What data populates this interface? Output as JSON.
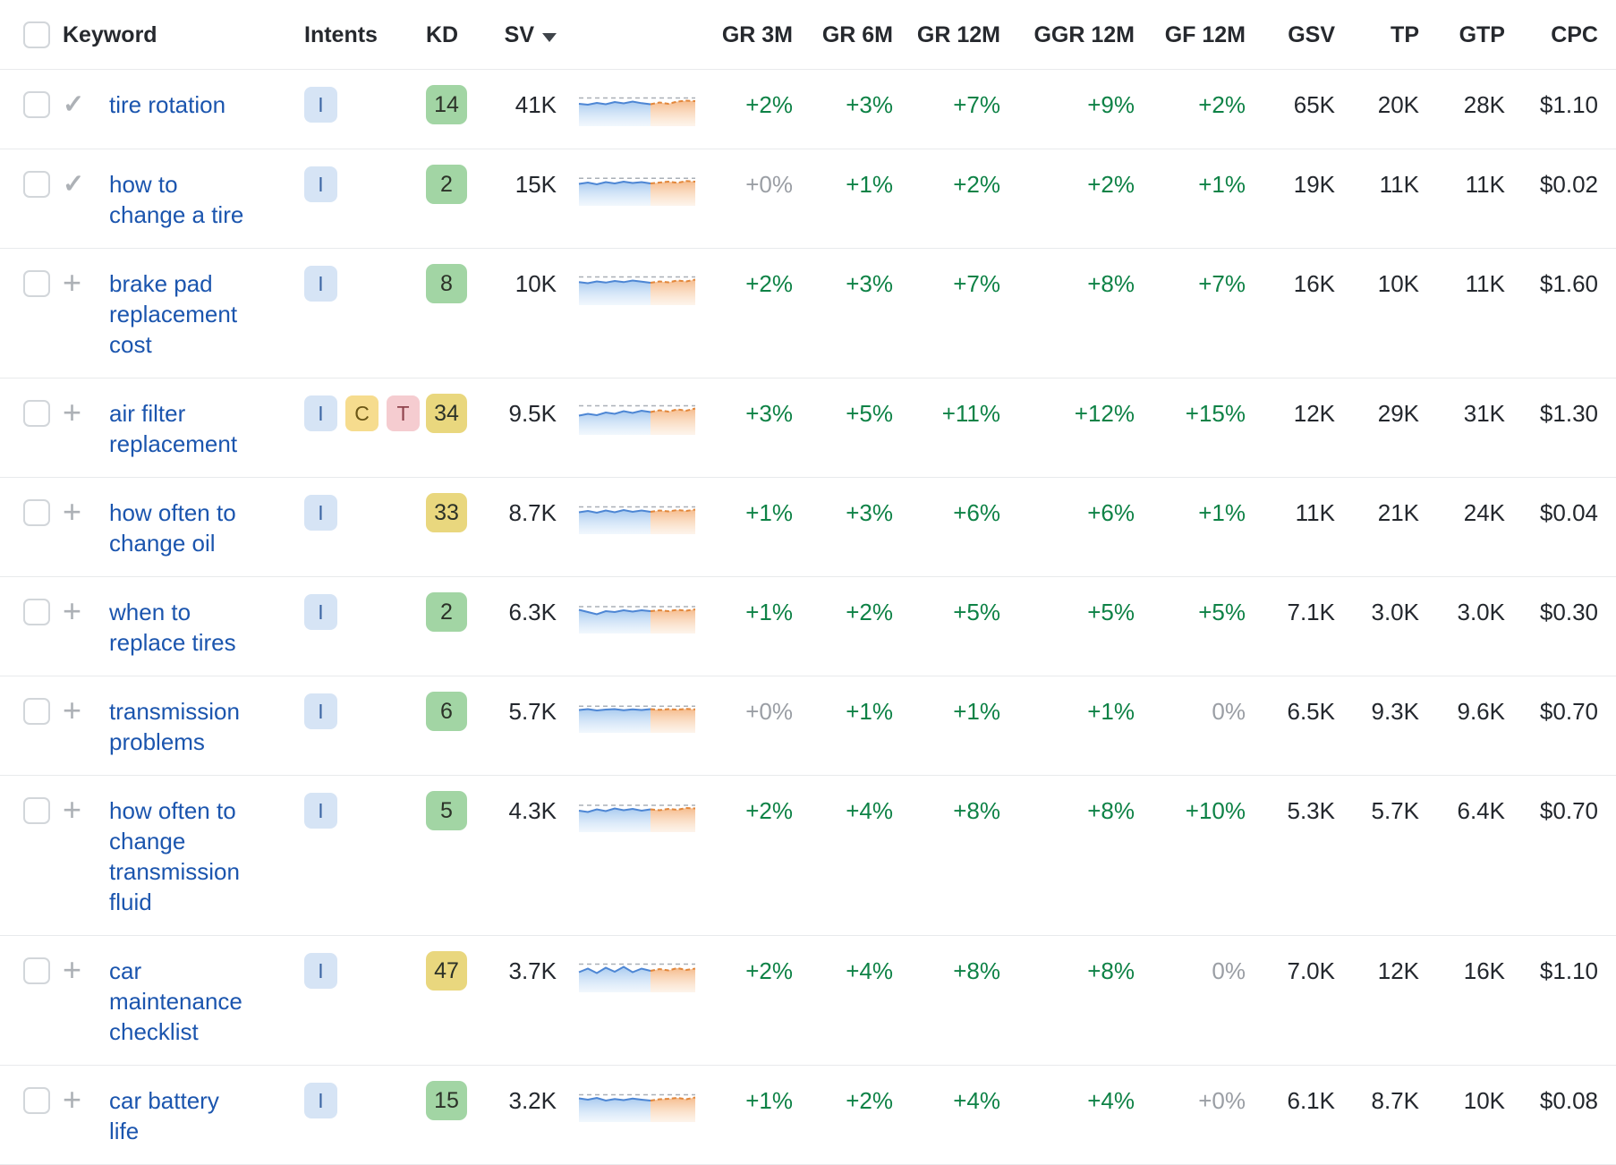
{
  "colors": {
    "link_blue": "#1b55ae",
    "positive_green": "#0e8246",
    "neutral_gray": "#9a9ea4",
    "kd_green_bg": "#a2d5a4",
    "kd_yellow_bg": "#e9d77e",
    "intent_info_bg": "#d6e4f5",
    "intent_commercial_bg": "#f6dc8e",
    "intent_transactional_bg": "#f5ccd0",
    "spark_blue_line": "#4d86d4",
    "spark_orange_line": "#e2873b"
  },
  "table": {
    "spark_split": 8,
    "icons": {
      "check": "✓",
      "plus": "+"
    },
    "header": {
      "keyword": "Keyword",
      "intents": "Intents",
      "kd": "KD",
      "sv": "SV",
      "gr3m": "GR 3M",
      "gr6m": "GR 6M",
      "gr12m": "GR 12M",
      "ggr12m": "GGR 12M",
      "gf12m": "GF 12M",
      "gsv": "GSV",
      "tp": "TP",
      "gtp": "GTP",
      "cpc": "CPC"
    },
    "rows": [
      {
        "keyword": "tire rotation",
        "action": "check",
        "intents": [
          {
            "label": "I",
            "type": "informational"
          }
        ],
        "kd": "14",
        "kd_level": "green",
        "sv": "41K",
        "trend": [
          0.52,
          0.48,
          0.56,
          0.5,
          0.6,
          0.54,
          0.62,
          0.55,
          0.5,
          0.58,
          0.52,
          0.62,
          0.66,
          0.64
        ],
        "gr3m": {
          "text": "+2%",
          "tone": "green"
        },
        "gr6m": {
          "text": "+3%",
          "tone": "green"
        },
        "gr12m": {
          "text": "+7%",
          "tone": "green"
        },
        "ggr12m": {
          "text": "+9%",
          "tone": "green"
        },
        "gf12m": {
          "text": "+2%",
          "tone": "green"
        },
        "gsv": "65K",
        "tp": "20K",
        "gtp": "28K",
        "cpc": "$1.10"
      },
      {
        "keyword": "how to\nchange a tire",
        "action": "check",
        "intents": [
          {
            "label": "I",
            "type": "informational"
          }
        ],
        "kd": "2",
        "kd_level": "green",
        "sv": "15K",
        "trend": [
          0.5,
          0.56,
          0.48,
          0.58,
          0.52,
          0.6,
          0.54,
          0.58,
          0.52,
          0.56,
          0.6,
          0.55,
          0.63,
          0.6
        ],
        "gr3m": {
          "text": "+0%",
          "tone": "gray"
        },
        "gr6m": {
          "text": "+1%",
          "tone": "green"
        },
        "gr12m": {
          "text": "+2%",
          "tone": "green"
        },
        "ggr12m": {
          "text": "+2%",
          "tone": "green"
        },
        "gf12m": {
          "text": "+1%",
          "tone": "green"
        },
        "gsv": "19K",
        "tp": "11K",
        "gtp": "11K",
        "cpc": "$0.02"
      },
      {
        "keyword": "brake pad\nreplacement\ncost",
        "action": "plus",
        "intents": [
          {
            "label": "I",
            "type": "informational"
          }
        ],
        "kd": "8",
        "kd_level": "green",
        "sv": "10K",
        "trend": [
          0.55,
          0.5,
          0.58,
          0.53,
          0.6,
          0.55,
          0.62,
          0.57,
          0.52,
          0.58,
          0.54,
          0.62,
          0.58,
          0.66
        ],
        "gr3m": {
          "text": "+2%",
          "tone": "green"
        },
        "gr6m": {
          "text": "+3%",
          "tone": "green"
        },
        "gr12m": {
          "text": "+7%",
          "tone": "green"
        },
        "ggr12m": {
          "text": "+8%",
          "tone": "green"
        },
        "gf12m": {
          "text": "+7%",
          "tone": "green"
        },
        "gsv": "16K",
        "tp": "10K",
        "gtp": "11K",
        "cpc": "$1.60"
      },
      {
        "keyword": "air filter\nreplacement",
        "action": "plus",
        "intents": [
          {
            "label": "I",
            "type": "informational"
          },
          {
            "label": "C",
            "type": "commercial"
          },
          {
            "label": "T",
            "type": "transactional"
          }
        ],
        "kd": "34",
        "kd_level": "yellow",
        "sv": "9.5K",
        "trend": [
          0.38,
          0.46,
          0.4,
          0.52,
          0.46,
          0.58,
          0.5,
          0.6,
          0.54,
          0.62,
          0.56,
          0.66,
          0.6,
          0.7
        ],
        "gr3m": {
          "text": "+3%",
          "tone": "green"
        },
        "gr6m": {
          "text": "+5%",
          "tone": "green"
        },
        "gr12m": {
          "text": "+11%",
          "tone": "green"
        },
        "ggr12m": {
          "text": "+12%",
          "tone": "green"
        },
        "gf12m": {
          "text": "+15%",
          "tone": "green"
        },
        "gsv": "12K",
        "tp": "29K",
        "gtp": "31K",
        "cpc": "$1.30"
      },
      {
        "keyword": "how often to\nchange oil",
        "action": "plus",
        "intents": [
          {
            "label": "I",
            "type": "informational"
          }
        ],
        "kd": "33",
        "kd_level": "yellow",
        "sv": "8.7K",
        "trend": [
          0.5,
          0.56,
          0.48,
          0.58,
          0.5,
          0.6,
          0.52,
          0.58,
          0.52,
          0.58,
          0.54,
          0.6,
          0.56,
          0.62
        ],
        "gr3m": {
          "text": "+1%",
          "tone": "green"
        },
        "gr6m": {
          "text": "+3%",
          "tone": "green"
        },
        "gr12m": {
          "text": "+6%",
          "tone": "green"
        },
        "ggr12m": {
          "text": "+6%",
          "tone": "green"
        },
        "gf12m": {
          "text": "+1%",
          "tone": "green"
        },
        "gsv": "11K",
        "tp": "21K",
        "gtp": "24K",
        "cpc": "$0.04"
      },
      {
        "keyword": "when to\nreplace tires",
        "action": "plus",
        "intents": [
          {
            "label": "I",
            "type": "informational"
          }
        ],
        "kd": "2",
        "kd_level": "green",
        "sv": "6.3K",
        "trend": [
          0.58,
          0.48,
          0.38,
          0.52,
          0.48,
          0.56,
          0.5,
          0.56,
          0.52,
          0.56,
          0.52,
          0.58,
          0.54,
          0.6
        ],
        "gr3m": {
          "text": "+1%",
          "tone": "green"
        },
        "gr6m": {
          "text": "+2%",
          "tone": "green"
        },
        "gr12m": {
          "text": "+5%",
          "tone": "green"
        },
        "ggr12m": {
          "text": "+5%",
          "tone": "green"
        },
        "gf12m": {
          "text": "+5%",
          "tone": "green"
        },
        "gsv": "7.1K",
        "tp": "3.0K",
        "gtp": "3.0K",
        "cpc": "$0.30"
      },
      {
        "keyword": "transmission\nproblems",
        "action": "plus",
        "intents": [
          {
            "label": "I",
            "type": "informational"
          }
        ],
        "kd": "6",
        "kd_level": "green",
        "sv": "5.7K",
        "trend": [
          0.54,
          0.58,
          0.52,
          0.56,
          0.58,
          0.53,
          0.57,
          0.54,
          0.58,
          0.55,
          0.58,
          0.56,
          0.59,
          0.57
        ],
        "gr3m": {
          "text": "+0%",
          "tone": "gray"
        },
        "gr6m": {
          "text": "+1%",
          "tone": "green"
        },
        "gr12m": {
          "text": "+1%",
          "tone": "green"
        },
        "ggr12m": {
          "text": "+1%",
          "tone": "green"
        },
        "gf12m": {
          "text": "0%",
          "tone": "gray"
        },
        "gsv": "6.5K",
        "tp": "9.3K",
        "gtp": "9.6K",
        "cpc": "$0.70"
      },
      {
        "keyword": "how often to\nchange\ntransmission\nfluid",
        "action": "plus",
        "intents": [
          {
            "label": "I",
            "type": "informational"
          }
        ],
        "kd": "5",
        "kd_level": "green",
        "sv": "4.3K",
        "trend": [
          0.48,
          0.42,
          0.54,
          0.46,
          0.58,
          0.5,
          0.56,
          0.48,
          0.54,
          0.5,
          0.56,
          0.52,
          0.6,
          0.58
        ],
        "gr3m": {
          "text": "+2%",
          "tone": "green"
        },
        "gr6m": {
          "text": "+4%",
          "tone": "green"
        },
        "gr12m": {
          "text": "+8%",
          "tone": "green"
        },
        "ggr12m": {
          "text": "+8%",
          "tone": "green"
        },
        "gf12m": {
          "text": "+10%",
          "tone": "green"
        },
        "gsv": "5.3K",
        "tp": "5.7K",
        "gtp": "6.4K",
        "cpc": "$0.70"
      },
      {
        "keyword": "car\nmaintenance\nchecklist",
        "action": "plus",
        "intents": [
          {
            "label": "I",
            "type": "informational"
          }
        ],
        "kd": "47",
        "kd_level": "yellow",
        "sv": "3.7K",
        "trend": [
          0.42,
          0.58,
          0.38,
          0.62,
          0.44,
          0.66,
          0.42,
          0.58,
          0.48,
          0.56,
          0.5,
          0.6,
          0.52,
          0.58
        ],
        "gr3m": {
          "text": "+2%",
          "tone": "green"
        },
        "gr6m": {
          "text": "+4%",
          "tone": "green"
        },
        "gr12m": {
          "text": "+8%",
          "tone": "green"
        },
        "ggr12m": {
          "text": "+8%",
          "tone": "green"
        },
        "gf12m": {
          "text": "0%",
          "tone": "gray"
        },
        "gsv": "7.0K",
        "tp": "12K",
        "gtp": "16K",
        "cpc": "$1.10"
      },
      {
        "keyword": "car battery\nlife",
        "action": "plus",
        "intents": [
          {
            "label": "I",
            "type": "informational"
          }
        ],
        "kd": "15",
        "kd_level": "green",
        "sv": "3.2K",
        "trend": [
          0.58,
          0.52,
          0.6,
          0.48,
          0.55,
          0.5,
          0.57,
          0.52,
          0.48,
          0.54,
          0.56,
          0.6,
          0.54,
          0.62
        ],
        "gr3m": {
          "text": "+1%",
          "tone": "green"
        },
        "gr6m": {
          "text": "+2%",
          "tone": "green"
        },
        "gr12m": {
          "text": "+4%",
          "tone": "green"
        },
        "ggr12m": {
          "text": "+4%",
          "tone": "green"
        },
        "gf12m": {
          "text": "+0%",
          "tone": "gray"
        },
        "gsv": "6.1K",
        "tp": "8.7K",
        "gtp": "10K",
        "cpc": "$0.08"
      }
    ]
  }
}
